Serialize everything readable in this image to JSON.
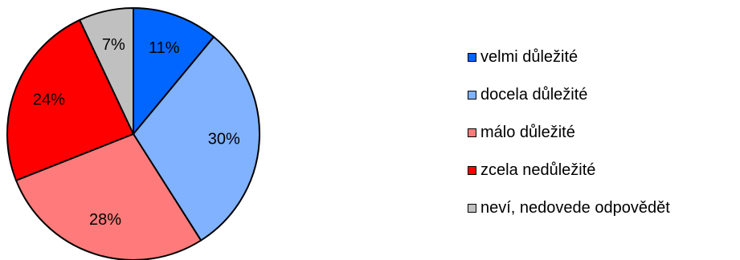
{
  "chart_data": {
    "type": "pie",
    "title": "",
    "legend_position": "right",
    "slices": [
      {
        "label": "velmi důležité",
        "value": 11,
        "value_label": "11%",
        "color": "#0066ff"
      },
      {
        "label": "docela důležité",
        "value": 30,
        "value_label": "30%",
        "color": "#80b2ff"
      },
      {
        "label": "málo důležité",
        "value": 28,
        "value_label": "28%",
        "color": "#ff7b7b"
      },
      {
        "label": "zcela nedůležité",
        "value": 24,
        "value_label": "24%",
        "color": "#ff0000"
      },
      {
        "label": "neví, nedovede odpovědět",
        "value": 7,
        "value_label": "7%",
        "color": "#c0c0c0"
      }
    ]
  }
}
